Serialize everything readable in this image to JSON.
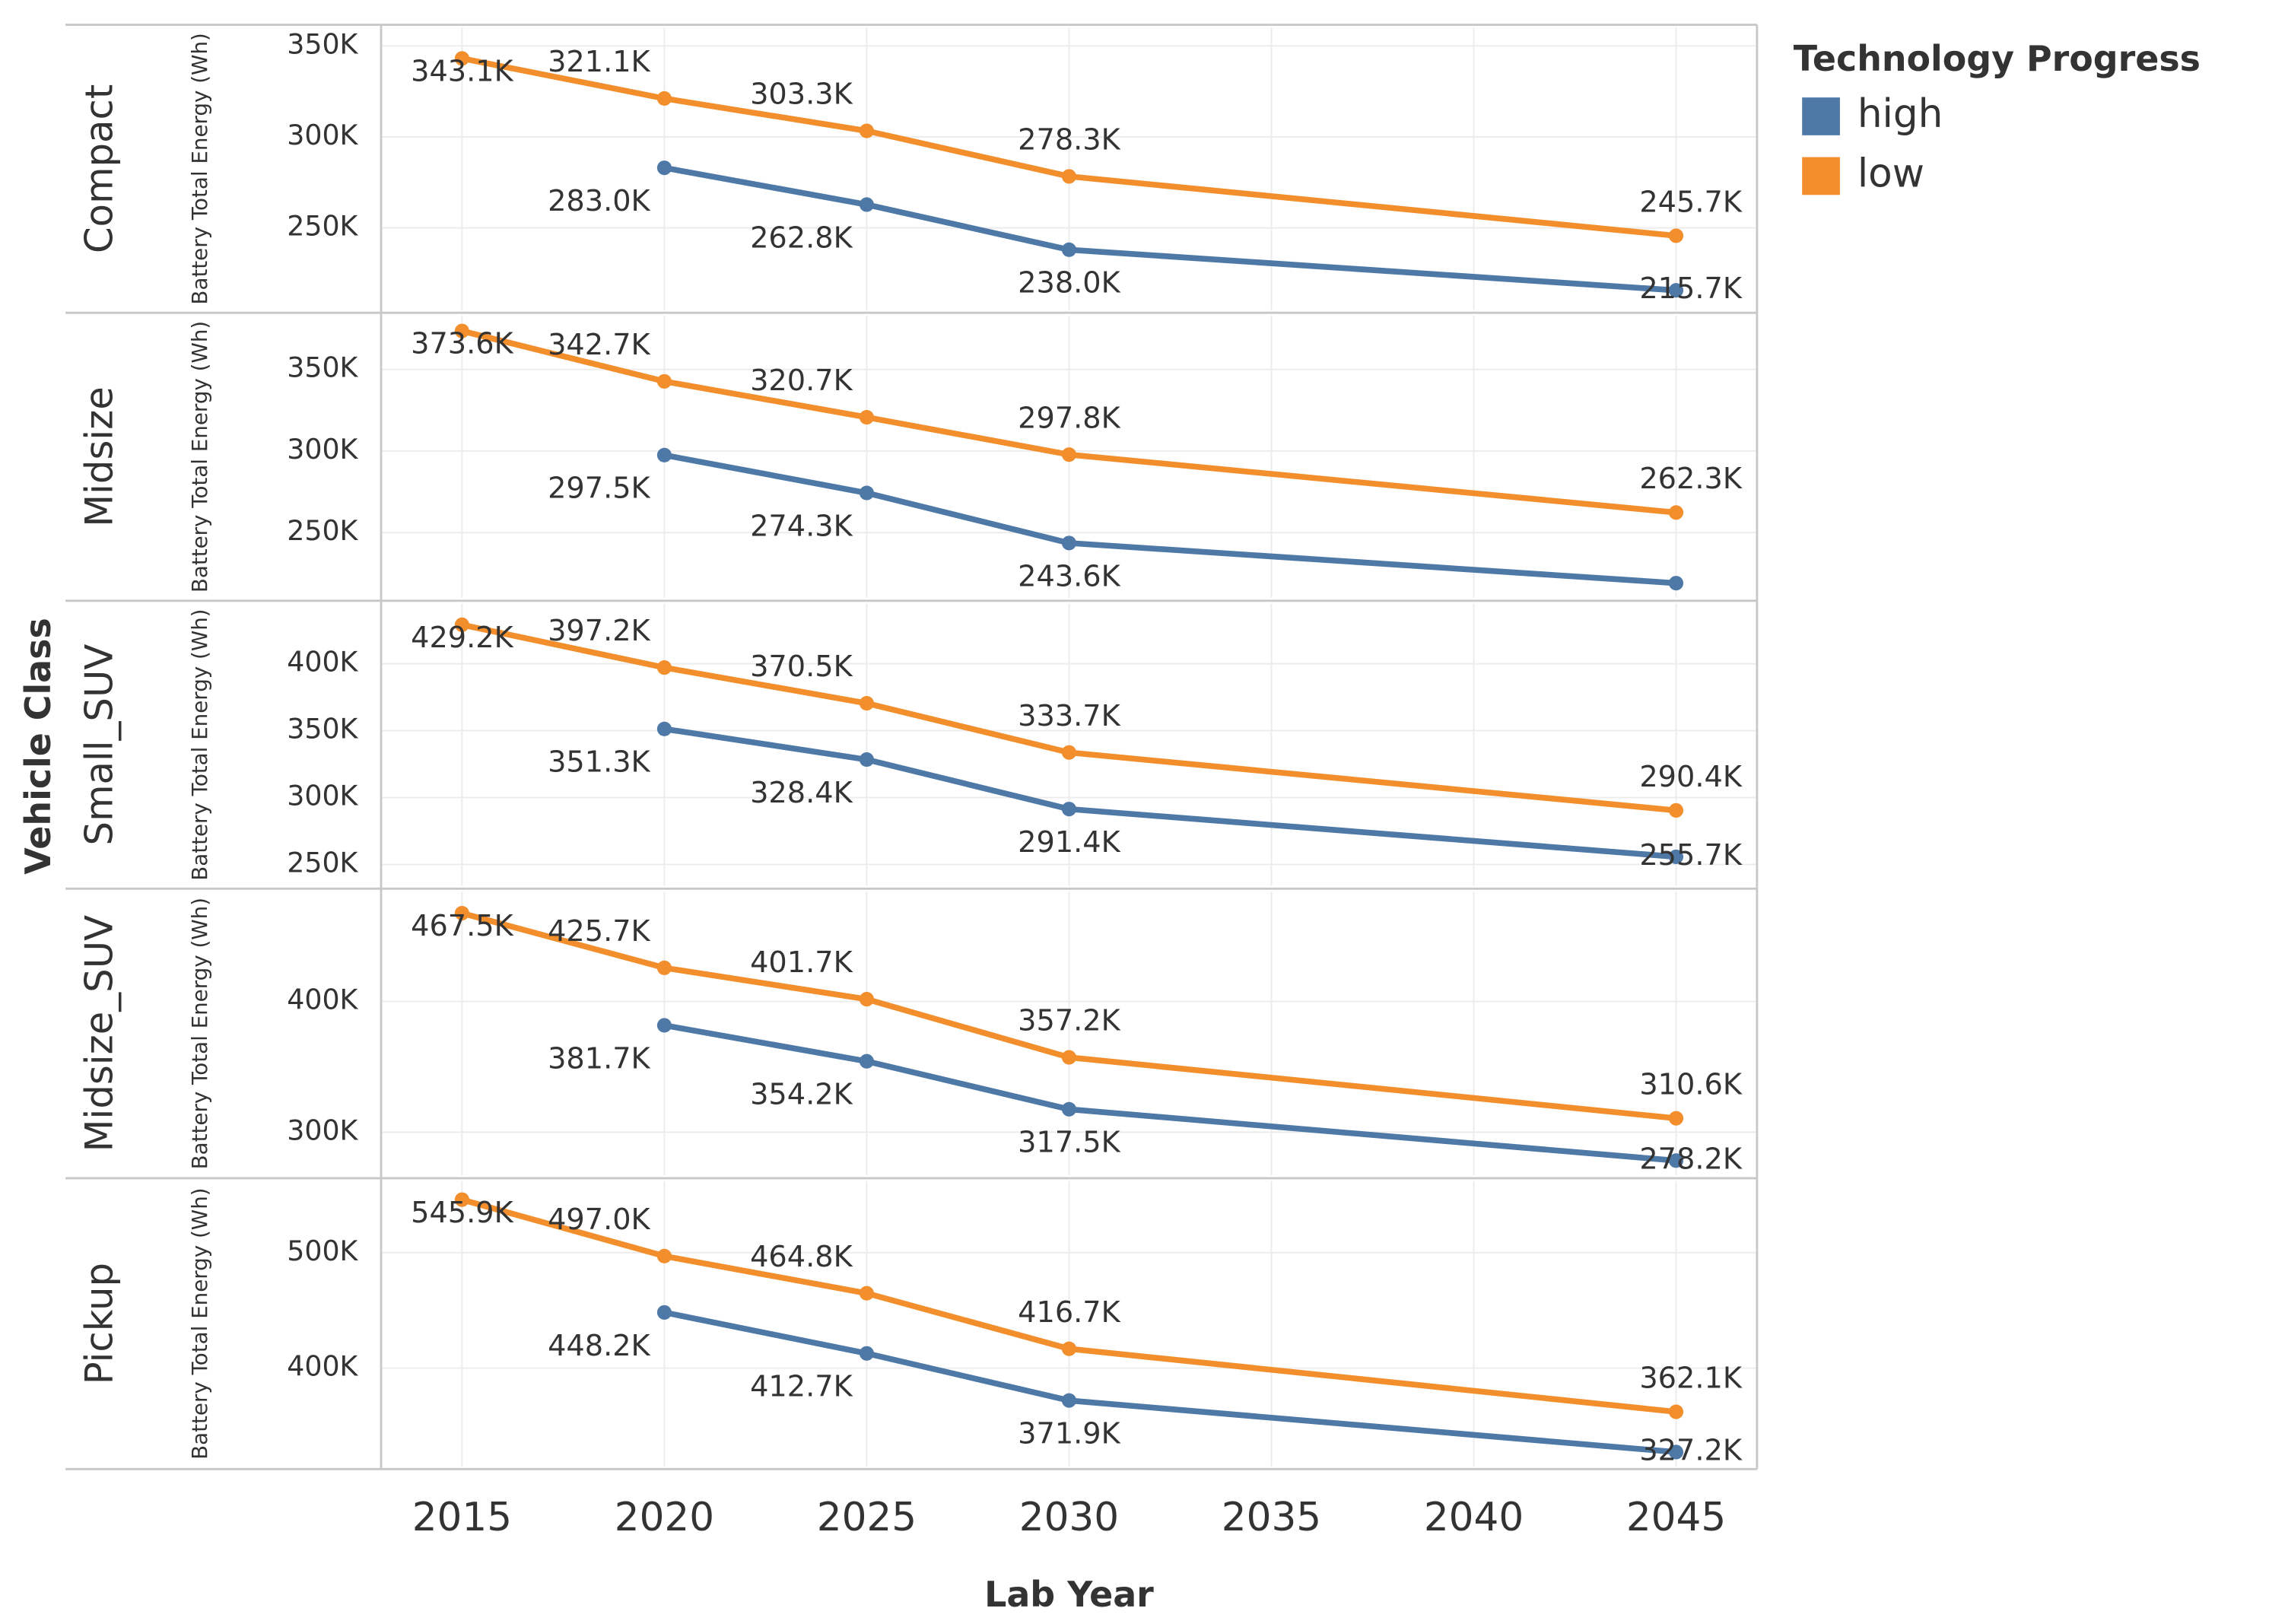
{
  "chart_data": {
    "type": "line",
    "xlabel": "Lab Year",
    "row_label": "Vehicle Class",
    "legend_title": "Technology Progress",
    "series": [
      {
        "name": "high",
        "color": "#4e79a7"
      },
      {
        "name": "low",
        "color": "#f28e2b"
      }
    ],
    "x": [
      2015,
      2020,
      2025,
      2030,
      2045
    ],
    "xlim": [
      2013,
      2047
    ],
    "xticks": [
      2015,
      2020,
      2025,
      2030,
      2035,
      2040,
      2045
    ],
    "grid": true,
    "panels": [
      {
        "name": "Compact",
        "ylabel": "Battery Total Energy (Wh)",
        "ylim": [
          205000,
          360000
        ],
        "yticks": [
          {
            "value": 250000,
            "label": "250K"
          },
          {
            "value": 300000,
            "label": "300K"
          },
          {
            "value": 350000,
            "label": "350K"
          }
        ],
        "series": [
          {
            "values": [
              null,
              283000,
              262800,
              238000,
              215700
            ],
            "value_labels": [
              null,
              "283.0K",
              "262.8K",
              "238.0K",
              "215.7K"
            ]
          },
          {
            "values": [
              343100,
              321100,
              303300,
              278300,
              245700
            ],
            "value_labels": [
              "343.1K",
              "321.1K",
              "303.3K",
              "278.3K",
              "245.7K"
            ]
          }
        ]
      },
      {
        "name": "Midsize",
        "ylabel": "Battery Total Energy (Wh)",
        "ylim": [
          210000,
          383000
        ],
        "yticks": [
          {
            "value": 250000,
            "label": "250K"
          },
          {
            "value": 300000,
            "label": "300K"
          },
          {
            "value": 350000,
            "label": "350K"
          }
        ],
        "series": [
          {
            "values": [
              null,
              297500,
              274300,
              243600,
              219000
            ],
            "value_labels": [
              null,
              "297.5K",
              "274.3K",
              "243.6K",
              null
            ]
          },
          {
            "values": [
              373600,
              342700,
              320700,
              297800,
              262300
            ],
            "value_labels": [
              "373.6K",
              "342.7K",
              "320.7K",
              "297.8K",
              "262.3K"
            ]
          }
        ]
      },
      {
        "name": "Small_SUV",
        "ylabel": "Battery Total Energy (Wh)",
        "ylim": [
          234000,
          445000
        ],
        "yticks": [
          {
            "value": 250000,
            "label": "250K"
          },
          {
            "value": 300000,
            "label": "300K"
          },
          {
            "value": 350000,
            "label": "350K"
          },
          {
            "value": 400000,
            "label": "400K"
          }
        ],
        "series": [
          {
            "values": [
              null,
              351300,
              328400,
              291400,
              255700
            ],
            "value_labels": [
              null,
              "351.3K",
              "328.4K",
              "291.4K",
              "255.7K"
            ]
          },
          {
            "values": [
              429200,
              397200,
              370500,
              333700,
              290400
            ],
            "value_labels": [
              "429.2K",
              "397.2K",
              "370.5K",
              "333.7K",
              "290.4K"
            ]
          }
        ]
      },
      {
        "name": "Midsize_SUV",
        "ylabel": "Battery Total Energy (Wh)",
        "ylim": [
          267000,
          484000
        ],
        "yticks": [
          {
            "value": 300000,
            "label": "300K"
          },
          {
            "value": 400000,
            "label": "400K"
          }
        ],
        "series": [
          {
            "values": [
              null,
              381700,
              354200,
              317500,
              278200
            ],
            "value_labels": [
              null,
              "381.7K",
              "354.2K",
              "317.5K",
              "278.2K"
            ]
          },
          {
            "values": [
              467500,
              425700,
              401700,
              357200,
              310600
            ],
            "value_labels": [
              "467.5K",
              "425.7K",
              "401.7K",
              "357.2K",
              "310.6K"
            ]
          }
        ]
      },
      {
        "name": "Pickup",
        "ylabel": "Battery Total Energy (Wh)",
        "ylim": [
          315000,
          562000
        ],
        "yticks": [
          {
            "value": 400000,
            "label": "400K"
          },
          {
            "value": 500000,
            "label": "500K"
          }
        ],
        "series": [
          {
            "values": [
              null,
              448200,
              412700,
              371900,
              327200
            ],
            "value_labels": [
              null,
              "448.2K",
              "412.7K",
              "371.9K",
              "327.2K"
            ]
          },
          {
            "values": [
              545900,
              497000,
              464800,
              416700,
              362100
            ],
            "value_labels": [
              "545.9K",
              "497.0K",
              "464.8K",
              "416.7K",
              "362.1K"
            ]
          }
        ]
      }
    ]
  }
}
